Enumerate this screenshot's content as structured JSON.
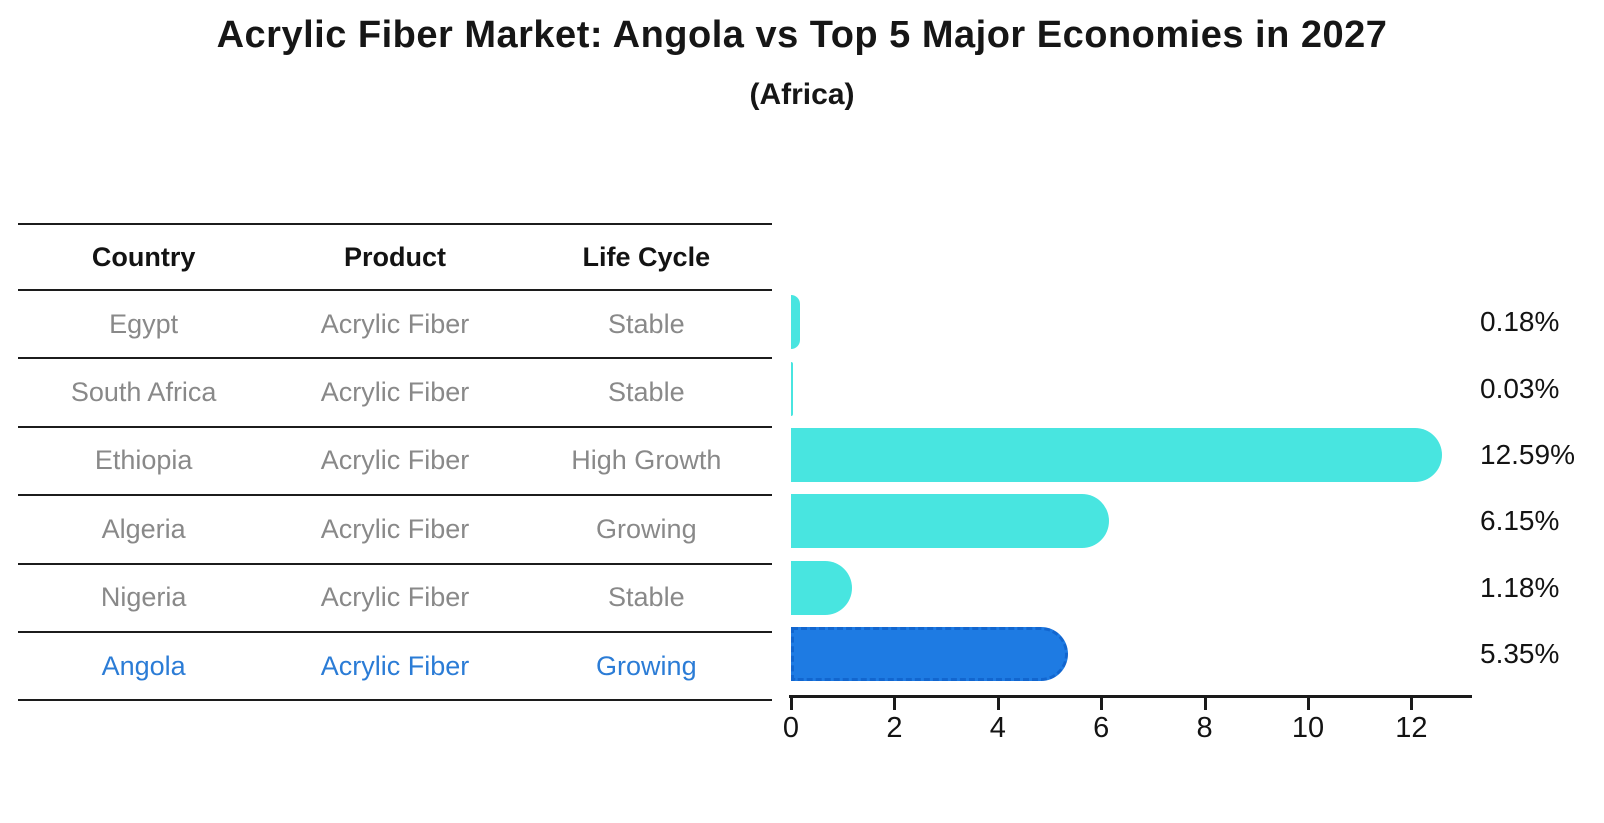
{
  "title": "Acrylic Fiber Market: Angola vs Top 5 Major Economies in 2027",
  "subtitle": "(Africa)",
  "table": {
    "headers": [
      "Country",
      "Product",
      "Life Cycle"
    ],
    "rows": [
      {
        "country": "Egypt",
        "product": "Acrylic Fiber",
        "life_cycle": "Stable",
        "highlight": false
      },
      {
        "country": "South Africa",
        "product": "Acrylic Fiber",
        "life_cycle": "Stable",
        "highlight": false
      },
      {
        "country": "Ethiopia",
        "product": "Acrylic Fiber",
        "life_cycle": "High Growth",
        "highlight": false
      },
      {
        "country": "Algeria",
        "product": "Acrylic Fiber",
        "life_cycle": "Growing",
        "highlight": false
      },
      {
        "country": "Nigeria",
        "product": "Acrylic Fiber",
        "life_cycle": "Stable",
        "highlight": true
      }
    ]
  },
  "chart_data": {
    "type": "bar",
    "orientation": "horizontal",
    "title": "Acrylic Fiber Market: Angola vs Top 5 Major Economies in 2027",
    "subtitle": "(Africa)",
    "categories": [
      "Egypt",
      "South Africa",
      "Ethiopia",
      "Algeria",
      "Nigeria",
      "Angola"
    ],
    "values": [
      0.18,
      0.03,
      12.59,
      6.15,
      1.18,
      5.35
    ],
    "value_labels": [
      "0.18%",
      "0.03%",
      "12.59%",
      "6.15%",
      "1.18%",
      "5.35%"
    ],
    "highlight_category": "Angola",
    "xlim": [
      0,
      13.2
    ],
    "xticks": [
      0,
      2,
      4,
      6,
      8,
      10,
      12
    ],
    "grid": false,
    "legend": "none",
    "xlabel": "",
    "ylabel": ""
  },
  "colors": {
    "bar": "#48E5E0",
    "highlight_bar": "#1E7BE3",
    "highlight_border": "#1266cf",
    "highlight_text": "#2b7cd6",
    "text_dark": "#161616",
    "text_gray": "#898989"
  }
}
